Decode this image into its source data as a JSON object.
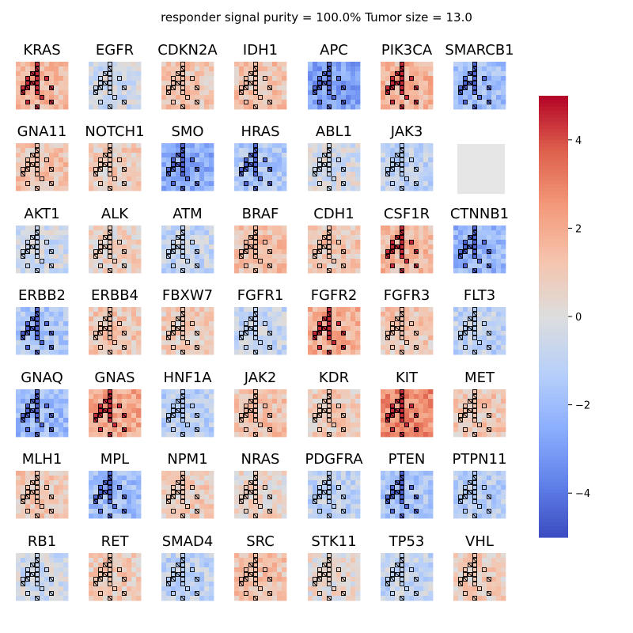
{
  "figure": {
    "title": "responder signal purity = 100.0% Tumor size = 13.0"
  },
  "colormap": {
    "name": "coolwarm",
    "vmin": -5,
    "vmax": 5,
    "empty_color": "#e6e6e6",
    "ticks": [
      {
        "value": 4,
        "label": "4"
      },
      {
        "value": 2,
        "label": "2"
      },
      {
        "value": 0,
        "label": "0"
      },
      {
        "value": -2,
        "label": "−2"
      },
      {
        "value": -4,
        "label": "−4"
      }
    ]
  },
  "chart_data": {
    "type": "heatmap",
    "grid": {
      "rows": 7,
      "cols": 7
    },
    "cell_grid": {
      "rows": 10,
      "cols": 11
    },
    "panels": [
      {
        "gene": "KRAS",
        "level": 1.5
      },
      {
        "gene": "EGFR",
        "level": -0.5
      },
      {
        "gene": "CDKN2A",
        "level": 1.0
      },
      {
        "gene": "IDH1",
        "level": 1.2
      },
      {
        "gene": "APC",
        "level": -2.8
      },
      {
        "gene": "PIK3CA",
        "level": 1.6
      },
      {
        "gene": "SMARCB1",
        "level": -1.8
      },
      {
        "gene": "GNA11",
        "level": 1.2
      },
      {
        "gene": "NOTCH1",
        "level": 0.8
      },
      {
        "gene": "SMO",
        "level": -2.5
      },
      {
        "gene": "HRAS",
        "level": -1.5
      },
      {
        "gene": "ABL1",
        "level": -0.3
      },
      {
        "gene": "JAK3",
        "level": -1.0
      },
      {
        "gene": "",
        "level": null
      },
      {
        "gene": "AKT1",
        "level": -0.5
      },
      {
        "gene": "ALK",
        "level": 0.6
      },
      {
        "gene": "ATM",
        "level": -0.8
      },
      {
        "gene": "BRAF",
        "level": 1.3
      },
      {
        "gene": "CDH1",
        "level": 1.0
      },
      {
        "gene": "CSF1R",
        "level": 1.5
      },
      {
        "gene": "CTNNB1",
        "level": -2.2
      },
      {
        "gene": "ERBB2",
        "level": -1.5
      },
      {
        "gene": "ERBB4",
        "level": 1.0
      },
      {
        "gene": "FBXW7",
        "level": 0.8
      },
      {
        "gene": "FGFR1",
        "level": -0.8
      },
      {
        "gene": "FGFR2",
        "level": 1.8
      },
      {
        "gene": "FGFR3",
        "level": 1.0
      },
      {
        "gene": "FLT3",
        "level": -1.0
      },
      {
        "gene": "GNAQ",
        "level": -2.0
      },
      {
        "gene": "GNAS",
        "level": 2.0
      },
      {
        "gene": "HNF1A",
        "level": -1.2
      },
      {
        "gene": "JAK2",
        "level": 1.2
      },
      {
        "gene": "KDR",
        "level": 0.8
      },
      {
        "gene": "KIT",
        "level": 2.8
      },
      {
        "gene": "MET",
        "level": 1.0
      },
      {
        "gene": "MLH1",
        "level": 1.0
      },
      {
        "gene": "MPL",
        "level": -1.8
      },
      {
        "gene": "NPM1",
        "level": 0.8
      },
      {
        "gene": "NRAS",
        "level": 0.5
      },
      {
        "gene": "PDGFRA",
        "level": -1.0
      },
      {
        "gene": "PTEN",
        "level": -1.5
      },
      {
        "gene": "PTPN11",
        "level": -1.2
      },
      {
        "gene": "RB1",
        "level": -0.5
      },
      {
        "gene": "RET",
        "level": 0.9
      },
      {
        "gene": "SMAD4",
        "level": -1.0
      },
      {
        "gene": "SRC",
        "level": 1.2
      },
      {
        "gene": "STK11",
        "level": 0.3
      },
      {
        "gene": "TP53",
        "level": -0.8
      },
      {
        "gene": "VHL",
        "level": 0.8
      }
    ],
    "highlight_cells": [
      [
        0,
        4
      ],
      [
        1,
        4
      ],
      [
        2,
        3
      ],
      [
        2,
        4
      ],
      [
        3,
        2
      ],
      [
        3,
        4
      ],
      [
        3,
        6
      ],
      [
        4,
        2
      ],
      [
        4,
        3
      ],
      [
        4,
        4
      ],
      [
        5,
        1
      ],
      [
        5,
        2
      ],
      [
        5,
        4
      ],
      [
        5,
        7
      ],
      [
        6,
        1
      ],
      [
        6,
        4
      ],
      [
        7,
        5
      ],
      [
        8,
        2
      ],
      [
        8,
        7
      ],
      [
        9,
        4
      ]
    ],
    "crossed_cells": [
      [
        1,
        4
      ],
      [
        2,
        3
      ],
      [
        4,
        3
      ],
      [
        5,
        2
      ],
      [
        5,
        7
      ],
      [
        6,
        1
      ],
      [
        8,
        7
      ],
      [
        9,
        4
      ]
    ],
    "extreme_level": 4.5
  }
}
